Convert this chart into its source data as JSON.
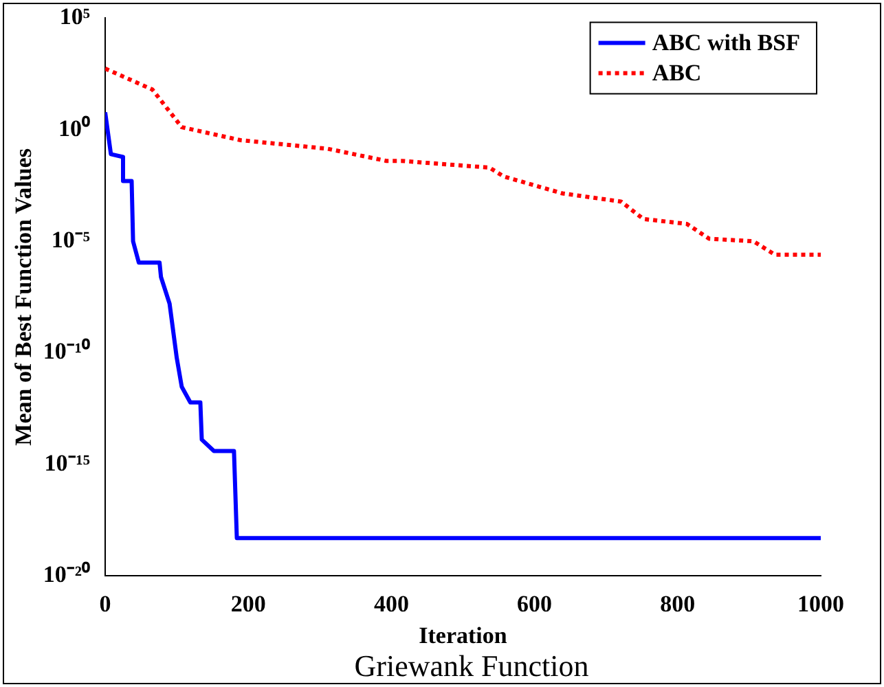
{
  "chart_data": {
    "type": "line",
    "xlabel": "Iteration",
    "ylabel": "Mean of Best Function Values",
    "annotations": [
      "Griewank Function"
    ],
    "series": [
      {
        "name": "ABC with BSF",
        "color": "#0000ff",
        "line_style": "solid",
        "x": [
          0,
          8,
          25,
          25,
          37,
          39,
          47,
          76,
          78,
          90,
          100,
          107,
          119,
          133,
          135,
          152,
          180,
          184,
          1000
        ],
        "values": [
          6.0,
          0.08,
          0.06,
          0.005,
          0.005,
          1e-05,
          1.1e-06,
          1.1e-06,
          2.5e-07,
          1.6e-08,
          6e-11,
          3e-12,
          6e-13,
          6e-13,
          1.3e-14,
          4e-15,
          4e-15,
          5e-19,
          5e-19
        ]
      },
      {
        "name": "ABC",
        "color": "#ff0000",
        "line_style": "dotted",
        "x": [
          0,
          66,
          107,
          189,
          311,
          393,
          414,
          537,
          557,
          639,
          721,
          752,
          813,
          844,
          906,
          936,
          1000
        ],
        "values": [
          550,
          63,
          1.3,
          0.34,
          0.14,
          0.04,
          0.04,
          0.02,
          0.008,
          0.0014,
          0.0006,
          0.0001,
          6e-05,
          1.3e-05,
          1e-05,
          2.5e-06,
          2.5e-06
        ]
      }
    ],
    "xlim": [
      0,
      1000
    ],
    "xticks": [
      0,
      200,
      400,
      600,
      800,
      1000
    ],
    "ylim": [
      1e-20,
      100000.0
    ],
    "yticks": [
      {
        "value": 1e-20,
        "label": "10⁻²⁰"
      },
      {
        "value": 1e-15,
        "label": "10⁻¹⁵"
      },
      {
        "value": 1e-10,
        "label": "10⁻¹⁰"
      },
      {
        "value": 1e-05,
        "label": "10⁻⁵"
      },
      {
        "value": 1,
        "label": "10⁰"
      },
      {
        "value": 100000.0,
        "label": "10⁵"
      }
    ],
    "log": "y",
    "grid": false,
    "legend": "top right",
    "marker": "none"
  }
}
